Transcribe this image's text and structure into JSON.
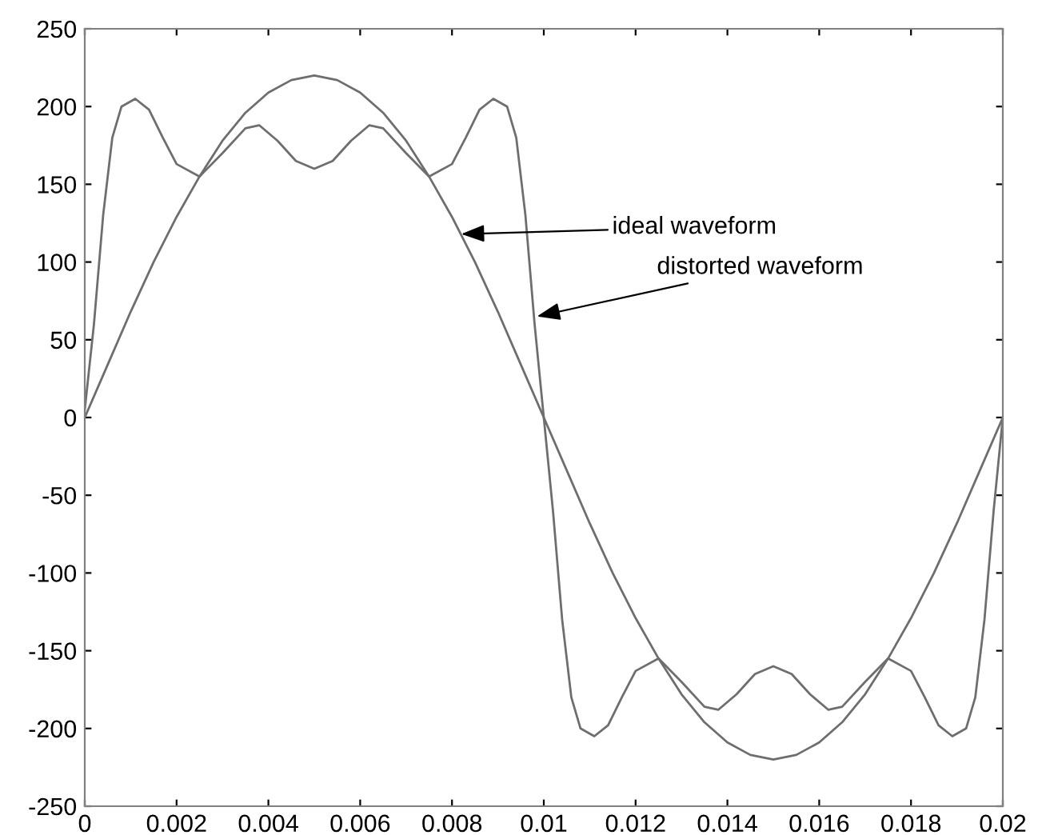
{
  "chart_data": {
    "type": "line",
    "xlim": [
      0,
      0.02
    ],
    "ylim": [
      -250,
      250
    ],
    "xticks": [
      0,
      0.002,
      0.004,
      0.006,
      0.008,
      0.01,
      0.012,
      0.014,
      0.016,
      0.018,
      0.02
    ],
    "yticks": [
      -250,
      -200,
      -150,
      -100,
      -50,
      0,
      50,
      100,
      150,
      200,
      250
    ],
    "grid": false,
    "marker": "none",
    "line_style": "solid",
    "series": [
      {
        "color": "#6e6e6e",
        "x": [
          0,
          0.0005,
          0.001,
          0.0015,
          0.002,
          0.0025,
          0.003,
          0.0035,
          0.004,
          0.0045,
          0.005,
          0.0055,
          0.006,
          0.0065,
          0.007,
          0.0075,
          0.008,
          0.0085,
          0.009,
          0.0095,
          0.01,
          0.0105,
          0.011,
          0.0115,
          0.012,
          0.0125,
          0.013,
          0.0135,
          0.014,
          0.0145,
          0.015,
          0.0155,
          0.016,
          0.0165,
          0.017,
          0.0175,
          0.018,
          0.0185,
          0.019,
          0.0195,
          0.02
        ],
        "values": [
          0,
          34,
          68,
          100,
          129,
          155,
          178,
          196,
          209,
          217,
          220,
          217,
          209,
          196,
          178,
          155,
          129,
          100,
          68,
          34,
          0,
          -34,
          -68,
          -100,
          -129,
          -155,
          -178,
          -196,
          -209,
          -217,
          -220,
          -217,
          -209,
          -196,
          -178,
          -155,
          -129,
          -100,
          -68,
          -34,
          0
        ]
      },
      {
        "color": "#6e6e6e",
        "x": [
          0,
          0.0002,
          0.0004,
          0.0006,
          0.0008,
          0.0011,
          0.0014,
          0.0017,
          0.002,
          0.0025,
          0.003,
          0.0035,
          0.0038,
          0.0042,
          0.0046,
          0.005,
          0.0054,
          0.0058,
          0.0062,
          0.0065,
          0.007,
          0.0075,
          0.008,
          0.0083,
          0.0086,
          0.0089,
          0.0092,
          0.0094,
          0.0096,
          0.0098,
          0.01,
          0.0102,
          0.0104,
          0.0106,
          0.0108,
          0.0111,
          0.0114,
          0.0117,
          0.012,
          0.0125,
          0.013,
          0.0135,
          0.0138,
          0.0142,
          0.0146,
          0.015,
          0.0154,
          0.0158,
          0.0162,
          0.0165,
          0.017,
          0.0175,
          0.018,
          0.0183,
          0.0186,
          0.0189,
          0.0192,
          0.0194,
          0.0196,
          0.0198,
          0.02
        ],
        "values": [
          5,
          60,
          130,
          180,
          200,
          205,
          198,
          180,
          163,
          155,
          170,
          186,
          188,
          178,
          165,
          160,
          165,
          178,
          188,
          186,
          170,
          155,
          163,
          180,
          198,
          205,
          200,
          180,
          130,
          60,
          0,
          -60,
          -130,
          -180,
          -200,
          -205,
          -198,
          -180,
          -163,
          -155,
          -170,
          -186,
          -188,
          -178,
          -165,
          -160,
          -165,
          -178,
          -188,
          -186,
          -170,
          -155,
          -163,
          -180,
          -198,
          -205,
          -200,
          -180,
          -130,
          -60,
          0
        ]
      }
    ],
    "annotations": [
      {
        "text": "ideal waveform",
        "x": 0.0082,
        "y": 118
      },
      {
        "text": "distorted waveform",
        "x": 0.00985,
        "y": 65
      }
    ]
  }
}
